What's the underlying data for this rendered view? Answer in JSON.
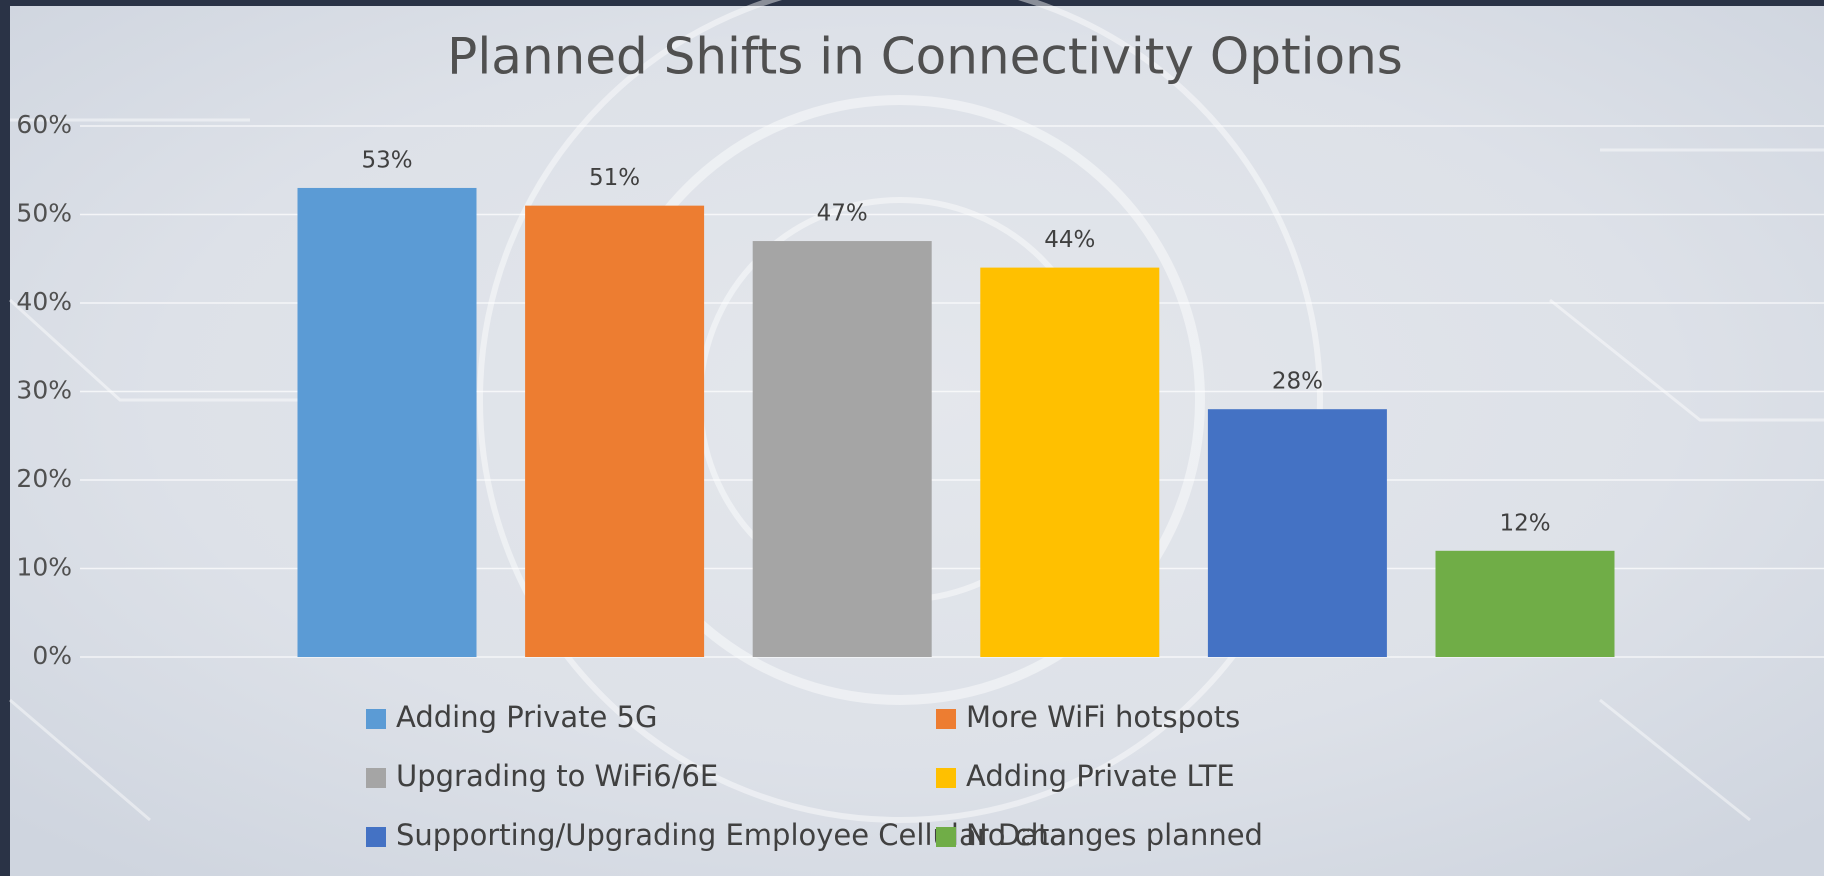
{
  "chart_data": {
    "type": "bar",
    "title": "Planned Shifts in Connectivity Options",
    "categories": [
      null
    ],
    "series": [
      {
        "name": "Adding Private 5G",
        "color": "#5b9bd5",
        "values": [
          53
        ],
        "value_labels": [
          "53%"
        ]
      },
      {
        "name": "More WiFi hotspots",
        "color": "#ed7d31",
        "values": [
          51
        ],
        "value_labels": [
          "51%"
        ]
      },
      {
        "name": "Upgrading to WiFi6/6E",
        "color": "#a5a5a5",
        "values": [
          47
        ],
        "value_labels": [
          "47%"
        ]
      },
      {
        "name": "Adding Private LTE",
        "color": "#ffc000",
        "values": [
          44
        ],
        "value_labels": [
          "44%"
        ]
      },
      {
        "name": "Supporting/Upgrading Employee Cellular Data",
        "color": "#4472c4",
        "values": [
          28
        ],
        "value_labels": [
          "28%"
        ]
      },
      {
        "name": "No changes planned",
        "color": "#70ad47",
        "values": [
          12
        ],
        "value_labels": [
          "12%"
        ]
      }
    ],
    "ylim": [
      0,
      60
    ],
    "yticks": [
      {
        "value": 0,
        "label": "0%"
      },
      {
        "value": 10,
        "label": "10%"
      },
      {
        "value": 20,
        "label": "20%"
      },
      {
        "value": 30,
        "label": "30%"
      },
      {
        "value": 40,
        "label": "40%"
      },
      {
        "value": 50,
        "label": "50%"
      },
      {
        "value": 60,
        "label": "60%"
      }
    ],
    "grid": true,
    "legend": "bottom"
  }
}
